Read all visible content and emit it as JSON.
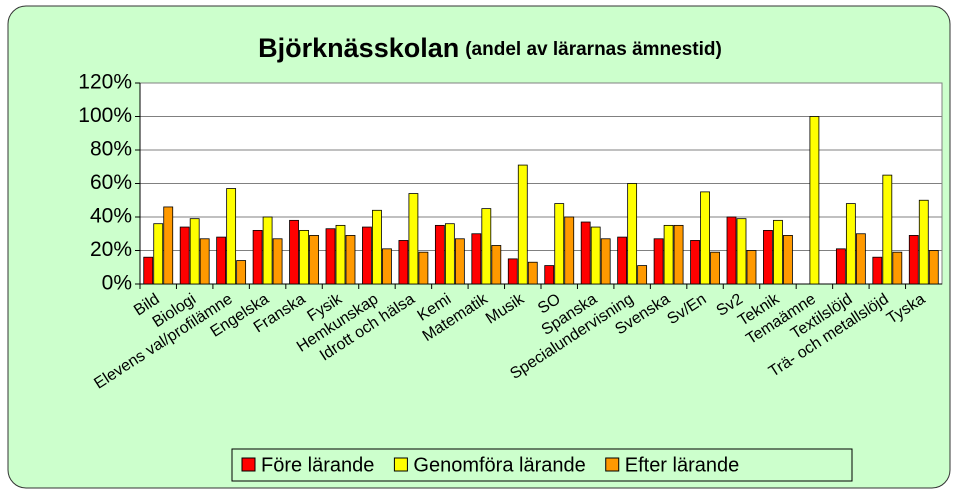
{
  "chart_data": {
    "type": "bar",
    "title": "Björknässkolan",
    "subtitle": "(andel av lärarnas ämnestid)",
    "categories": [
      "Bild",
      "Biologi",
      "Elevens val/profilämne",
      "Engelska",
      "Franska",
      "Fysik",
      "Hemkunskap",
      "Idrott och hälsa",
      "Kemi",
      "Matematik",
      "Musik",
      "SO",
      "Spanska",
      "Specialundervisning",
      "Svenska",
      "Sv/En",
      "Sv2",
      "Teknik",
      "Temaämne",
      "Textilslöjd",
      "Trä- och metallslöjd",
      "Tyska"
    ],
    "series": [
      {
        "name": "Före lärande",
        "color": "#ff0000",
        "values": [
          16,
          34,
          28,
          32,
          38,
          33,
          34,
          26,
          35,
          30,
          15,
          11,
          37,
          28,
          27,
          26,
          40,
          32,
          0,
          21,
          16,
          29
        ]
      },
      {
        "name": "Genomföra lärande",
        "color": "#ffff00",
        "values": [
          36,
          39,
          57,
          40,
          32,
          35,
          44,
          54,
          36,
          45,
          71,
          48,
          34,
          60,
          35,
          55,
          39,
          38,
          100,
          48,
          65,
          50
        ]
      },
      {
        "name": "Efter lärande",
        "color": "#ff9900",
        "values": [
          46,
          27,
          14,
          27,
          29,
          29,
          21,
          19,
          27,
          23,
          13,
          40,
          27,
          11,
          35,
          19,
          20,
          29,
          0,
          30,
          19,
          20
        ]
      }
    ],
    "ylim": [
      0,
      120
    ],
    "yticks": [
      {
        "value": 0,
        "label": "0%"
      },
      {
        "value": 20,
        "label": "20%"
      },
      {
        "value": 40,
        "label": "40%"
      },
      {
        "value": 60,
        "label": "60%"
      },
      {
        "value": 80,
        "label": "80%"
      },
      {
        "value": 100,
        "label": "100%"
      },
      {
        "value": 120,
        "label": "120%"
      }
    ],
    "grid": true,
    "legend": "bottom"
  }
}
